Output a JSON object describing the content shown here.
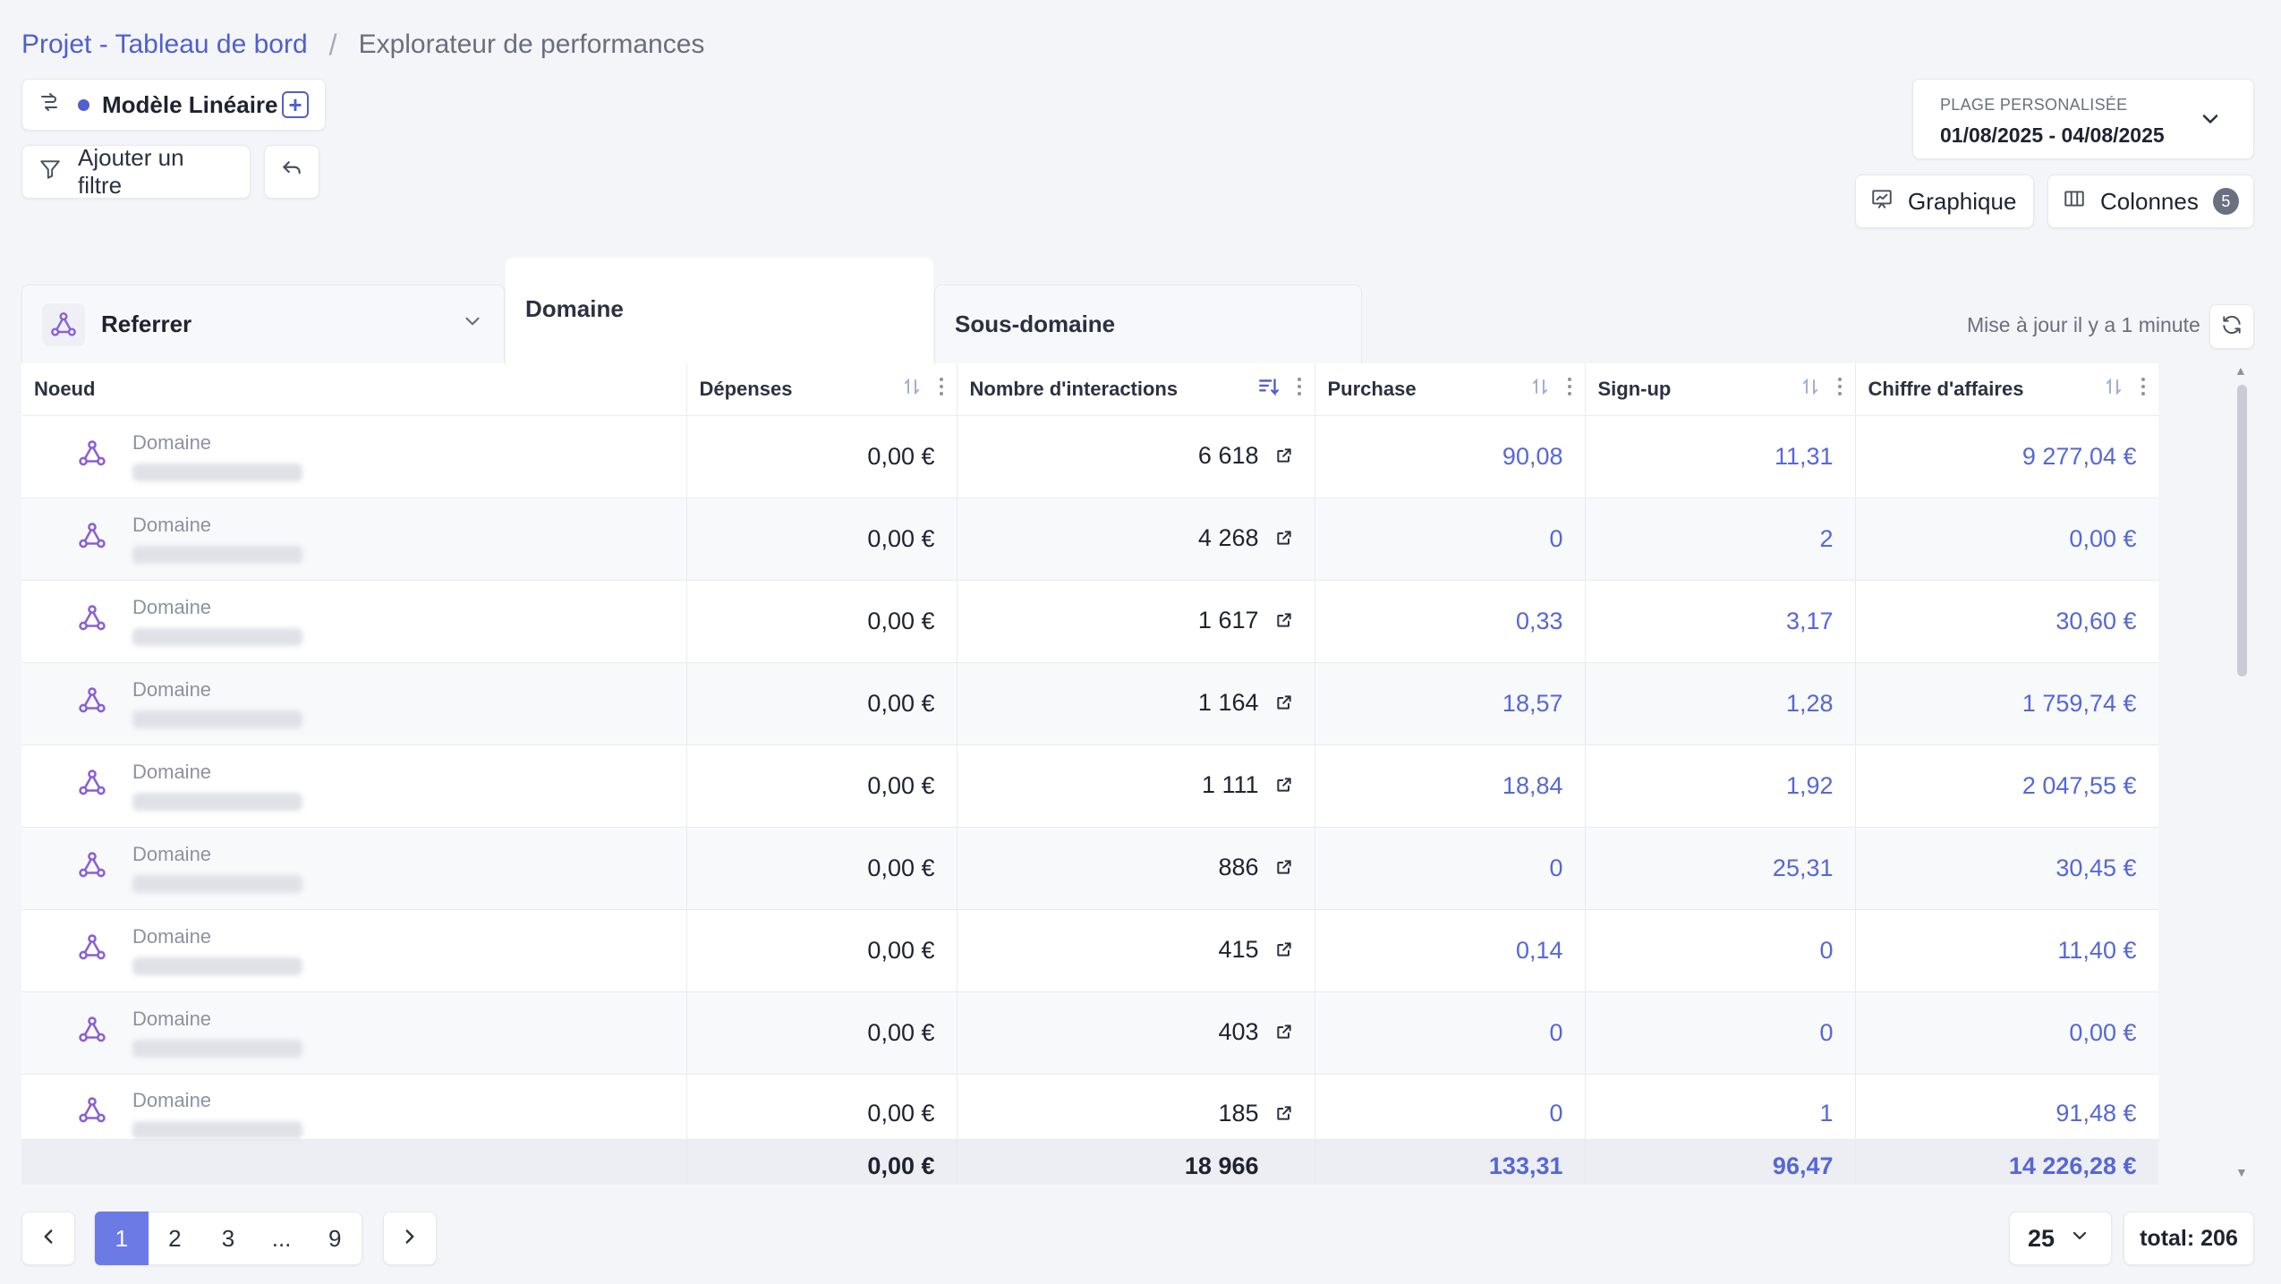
{
  "breadcrumb": {
    "project": "Projet - Tableau de bord",
    "separator": "/",
    "current": "Explorateur de performances"
  },
  "toolbar": {
    "model_label": "Modèle Linéaire",
    "add_model_symbol": "+",
    "filter_label": "Ajouter un filtre",
    "graph_label": "Graphique",
    "columns_label": "Colonnes",
    "columns_count": "5"
  },
  "date_range": {
    "label": "PLAGE PERSONALISÉE",
    "value": "01/08/2025 - 04/08/2025"
  },
  "tabs": {
    "dimension": "Referrer",
    "level_1": "Domaine",
    "level_2": "Sous-domaine"
  },
  "status": {
    "updated": "Mise à jour il y a 1 minute"
  },
  "table": {
    "columns": [
      "Noeud",
      "Dépenses",
      "Nombre d'interactions",
      "Purchase",
      "Sign-up",
      "Chiffre d'affaires"
    ],
    "rows": [
      {
        "type": "Domaine",
        "spend": "0,00 €",
        "interactions": "6 618",
        "purchase": "90,08",
        "signup": "11,31",
        "revenue": "9 277,04 €"
      },
      {
        "type": "Domaine",
        "spend": "0,00 €",
        "interactions": "4 268",
        "purchase": "0",
        "signup": "2",
        "revenue": "0,00 €"
      },
      {
        "type": "Domaine",
        "spend": "0,00 €",
        "interactions": "1 617",
        "purchase": "0,33",
        "signup": "3,17",
        "revenue": "30,60 €"
      },
      {
        "type": "Domaine",
        "spend": "0,00 €",
        "interactions": "1 164",
        "purchase": "18,57",
        "signup": "1,28",
        "revenue": "1 759,74 €"
      },
      {
        "type": "Domaine",
        "spend": "0,00 €",
        "interactions": "1 111",
        "purchase": "18,84",
        "signup": "1,92",
        "revenue": "2 047,55 €"
      },
      {
        "type": "Domaine",
        "spend": "0,00 €",
        "interactions": "886",
        "purchase": "0",
        "signup": "25,31",
        "revenue": "30,45 €"
      },
      {
        "type": "Domaine",
        "spend": "0,00 €",
        "interactions": "415",
        "purchase": "0,14",
        "signup": "0",
        "revenue": "11,40 €"
      },
      {
        "type": "Domaine",
        "spend": "0,00 €",
        "interactions": "403",
        "purchase": "0",
        "signup": "0",
        "revenue": "0,00 €"
      },
      {
        "type": "Domaine",
        "spend": "0,00 €",
        "interactions": "185",
        "purchase": "0",
        "signup": "1",
        "revenue": "91,48 €"
      }
    ],
    "totals": {
      "spend": "0,00 €",
      "interactions": "18 966",
      "purchase": "133,31",
      "signup": "96,47",
      "revenue": "14 226,28 €"
    }
  },
  "pagination": {
    "pages": [
      "1",
      "2",
      "3",
      "...",
      "9"
    ],
    "per_page": "25",
    "total": "total: 206"
  }
}
